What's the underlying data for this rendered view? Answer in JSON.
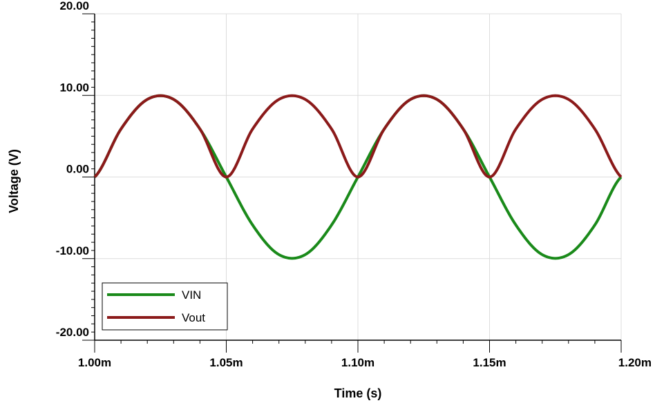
{
  "chart_data": {
    "type": "line",
    "title": "",
    "xlabel": "Time (s)",
    "ylabel": "Voltage (V)",
    "xlim": [
      0.001,
      0.0012
    ],
    "ylim": [
      -20,
      20
    ],
    "x_ticks": [
      0.001,
      0.00105,
      0.0011,
      0.00115,
      0.0012
    ],
    "x_tick_labels": [
      "1.00m",
      "1.05m",
      "1.10m",
      "1.15m",
      "1.20m"
    ],
    "y_ticks": [
      -20,
      -10,
      0,
      10,
      20
    ],
    "y_tick_labels": [
      "-20.00",
      "-10.00",
      "0.00",
      "10.00",
      "20.00"
    ],
    "grid": true,
    "legend_position": "bottom-left",
    "x": [
      0.001,
      0.00101,
      0.00102,
      0.00103,
      0.00104,
      0.00105,
      0.00106,
      0.00107,
      0.00108,
      0.00109,
      0.0011,
      0.00111,
      0.00112,
      0.00113,
      0.00114,
      0.00115,
      0.00116,
      0.00117,
      0.00118,
      0.00119,
      0.0012
    ],
    "series": [
      {
        "name": "VIN",
        "color": "#1a8a1a",
        "values": [
          0,
          5.88,
          9.51,
          9.51,
          5.88,
          0,
          -5.88,
          -9.51,
          -9.51,
          -5.88,
          0,
          5.88,
          9.51,
          9.51,
          5.88,
          0,
          -5.88,
          -9.51,
          -9.51,
          -5.88,
          0
        ]
      },
      {
        "name": "Vout",
        "color": "#8b1a1a",
        "values": [
          0,
          5.88,
          9.51,
          9.51,
          5.88,
          0,
          5.88,
          9.51,
          9.51,
          5.88,
          0,
          5.88,
          9.51,
          9.51,
          5.88,
          0,
          5.88,
          9.51,
          9.51,
          5.88,
          0
        ]
      }
    ]
  }
}
